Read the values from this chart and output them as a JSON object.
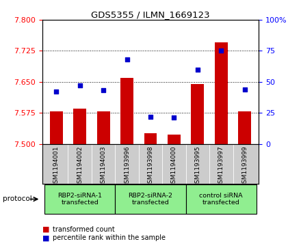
{
  "title": "GDS5355 / ILMN_1669123",
  "samples": [
    "GSM1194001",
    "GSM1194002",
    "GSM1194003",
    "GSM1193996",
    "GSM1193998",
    "GSM1194000",
    "GSM1193995",
    "GSM1193997",
    "GSM1193999"
  ],
  "red_values": [
    7.578,
    7.585,
    7.578,
    7.66,
    7.525,
    7.522,
    7.645,
    7.745,
    7.578
  ],
  "blue_values": [
    42,
    47,
    43,
    68,
    22,
    21,
    60,
    75,
    44
  ],
  "ylim_left": [
    7.5,
    7.8
  ],
  "ylim_right": [
    0,
    100
  ],
  "yticks_left": [
    7.5,
    7.575,
    7.65,
    7.725,
    7.8
  ],
  "yticks_right": [
    0,
    25,
    50,
    75,
    100
  ],
  "bar_color": "#cc0000",
  "dot_color": "#0000cc",
  "bg_color": "#ffffff",
  "label_bg": "#cccccc",
  "group_color": "#90ee90",
  "groups": [
    {
      "label": "RBP2-siRNA-1\ntransfected",
      "start": 0,
      "end": 3
    },
    {
      "label": "RBP2-siRNA-2\ntransfected",
      "start": 3,
      "end": 6
    },
    {
      "label": "control siRNA\ntransfected",
      "start": 6,
      "end": 9
    }
  ],
  "legend_items": [
    {
      "label": "transformed count",
      "color": "#cc0000"
    },
    {
      "label": "percentile rank within the sample",
      "color": "#0000cc"
    }
  ],
  "protocol_label": "protocol"
}
